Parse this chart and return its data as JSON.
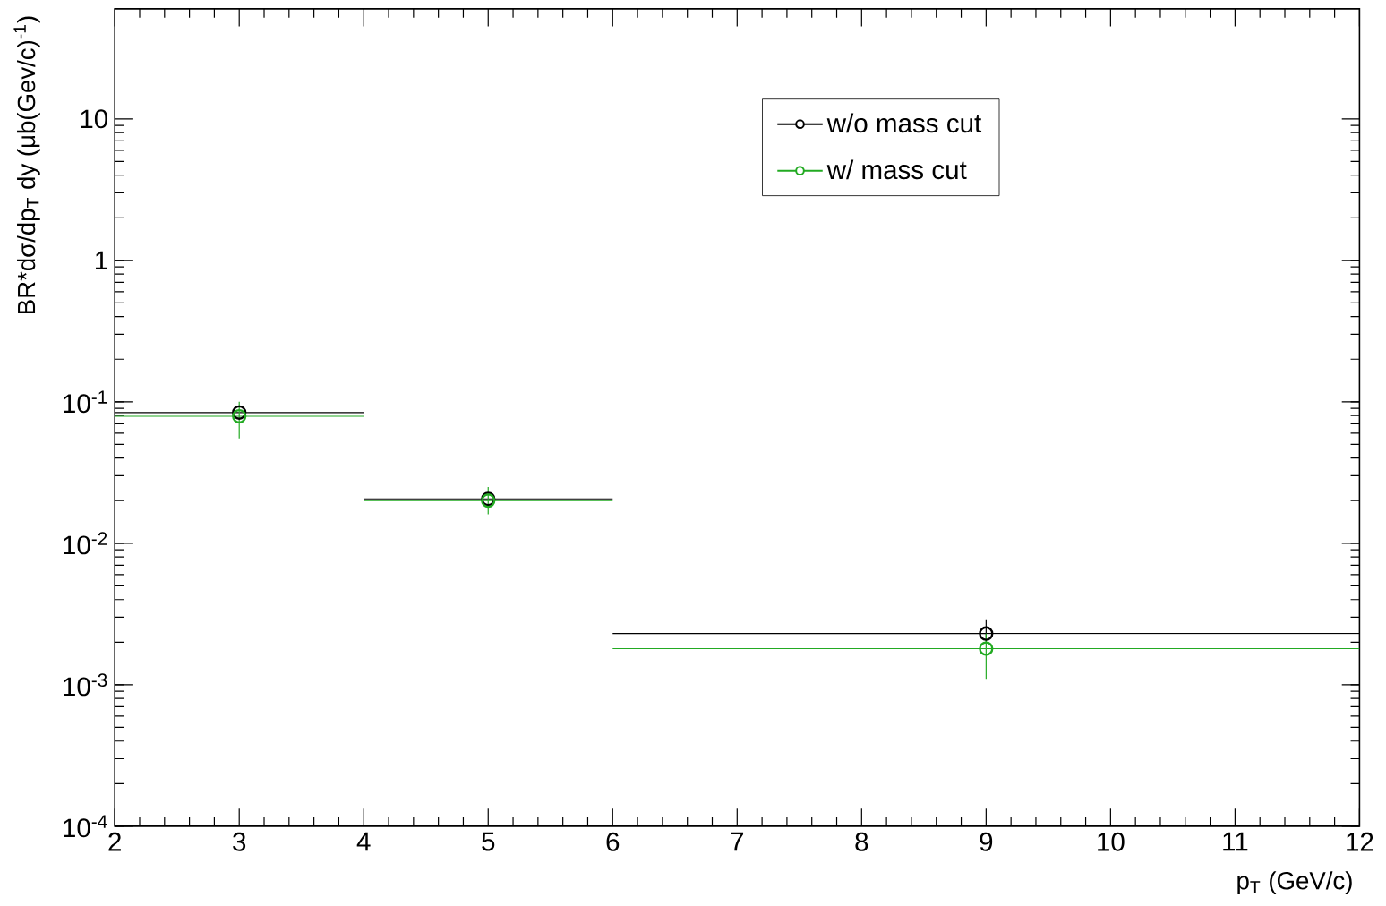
{
  "chart_data": {
    "type": "scatter",
    "xlabel": "p$_{T}$ (GeV/c)",
    "ylabel": "BR*dσ/dp$_{T}$ dy (μb(Gev/c)$^{-1}$)",
    "x": [
      3,
      5,
      9
    ],
    "log": "y",
    "marker": "circle",
    "legend": "top right",
    "grid": false,
    "xlim": [
      2,
      12
    ],
    "xticks": [
      2,
      3,
      4,
      5,
      6,
      7,
      8,
      9,
      10,
      11,
      12
    ],
    "ylim": [
      0.0001,
      60
    ],
    "yticks": [
      {
        "value": 0.0001,
        "label": "10$^{-4}$"
      },
      {
        "value": 0.001,
        "label": "10$^{-3}$"
      },
      {
        "value": 0.01,
        "label": "10$^{-2}$"
      },
      {
        "value": 0.1,
        "label": "10$^{-1}$"
      },
      1,
      10
    ],
    "series": [
      {
        "name": "w/o mass cut",
        "color": "#000000",
        "values": [
          0.084,
          0.0206,
          0.0023
        ],
        "xerrors": [
          1,
          1,
          3
        ],
        "errors": [
          null,
          null,
          [
            0.002,
            0.0029
          ]
        ]
      },
      {
        "name": "w/ mass cut",
        "color": "#22aa22",
        "values": [
          0.079,
          0.02,
          0.0018
        ],
        "xerrors": [
          1,
          1,
          3
        ],
        "errors": [
          [
            0.055,
            0.1
          ],
          [
            0.016,
            0.025
          ],
          [
            0.0011,
            0.0023
          ]
        ]
      }
    ]
  }
}
